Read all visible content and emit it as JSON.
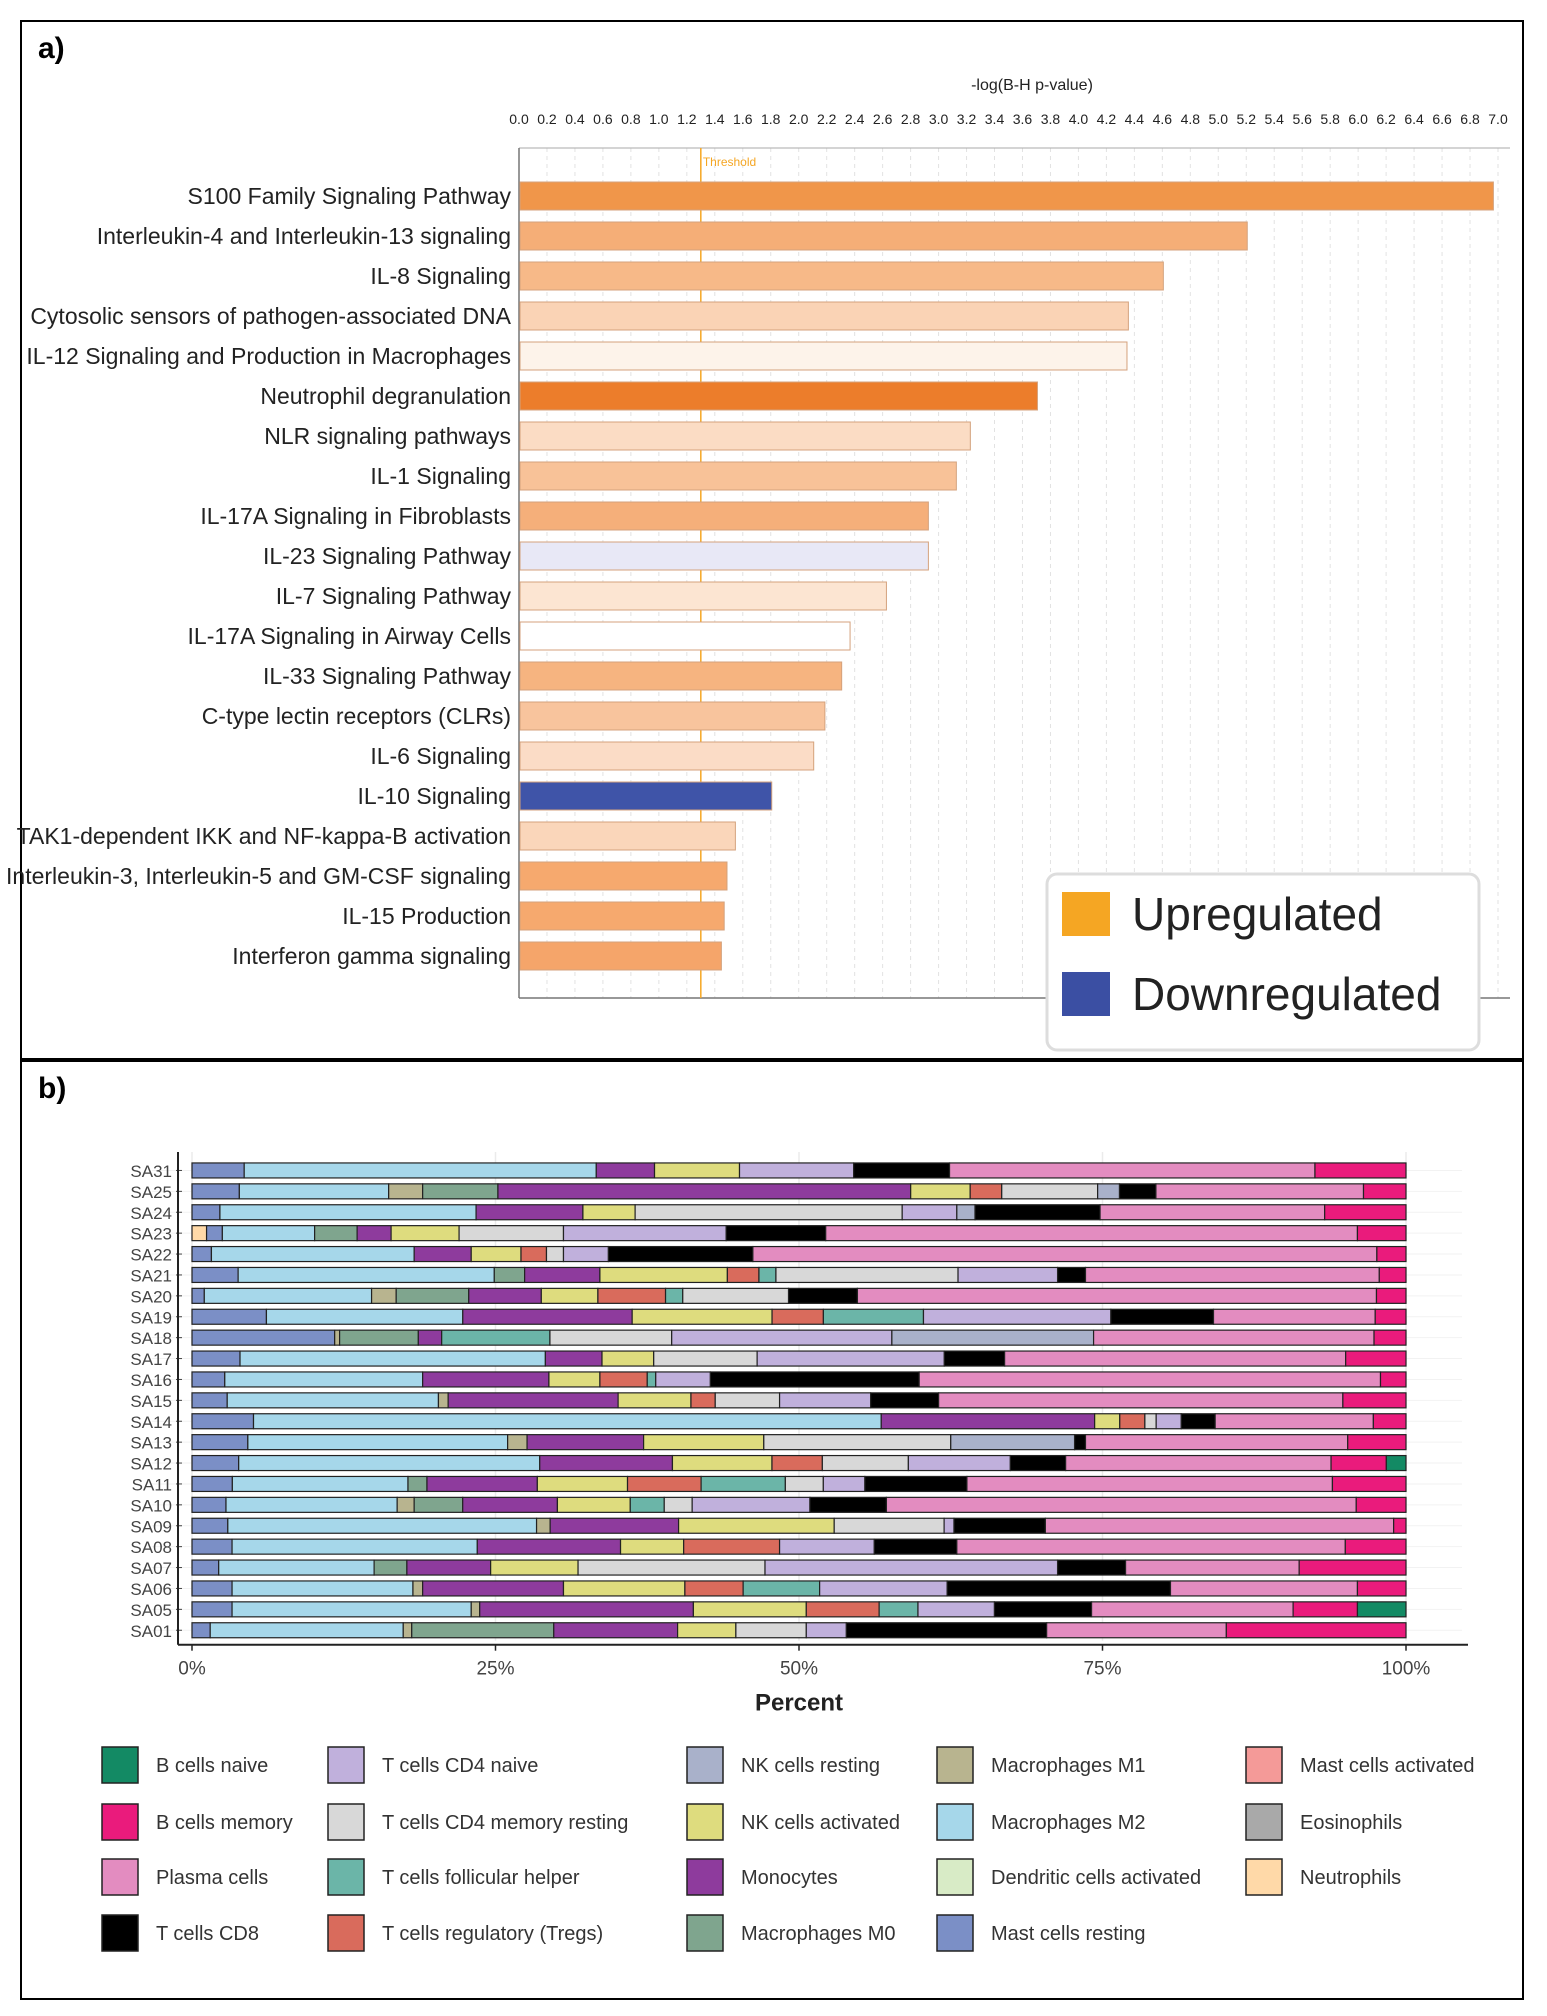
{
  "panel_a": {
    "label": "a)",
    "chart_data": {
      "type": "bar",
      "orientation": "horizontal",
      "xlabel": "-log(B-H p-value)",
      "xlim": [
        0,
        7.0
      ],
      "x_ticks": [
        "0.0",
        "0.2",
        "0.4",
        "0.6",
        "0.8",
        "1.0",
        "1.2",
        "1.4",
        "1.6",
        "1.8",
        "2.0",
        "2.2",
        "2.4",
        "2.6",
        "2.8",
        "3.0",
        "3.2",
        "3.4",
        "3.6",
        "3.8",
        "4.0",
        "4.2",
        "4.4",
        "4.6",
        "4.8",
        "5.0",
        "5.2",
        "5.4",
        "5.6",
        "5.8",
        "6.0",
        "6.2",
        "6.4",
        "6.6",
        "6.8",
        "7.0"
      ],
      "threshold": 1.3,
      "threshold_label": "Threshold",
      "categories": [
        "S100 Family Signaling Pathway",
        "Interleukin-4 and Interleukin-13 signaling",
        "IL-8 Signaling",
        "Cytosolic sensors of pathogen-associated DNA",
        "IL-12 Signaling and Production in Macrophages",
        "Neutrophil degranulation",
        "NLR signaling pathways",
        "IL-1 Signaling",
        "IL-17A Signaling in Fibroblasts",
        "IL-23 Signaling Pathway",
        "IL-7 Signaling Pathway",
        "IL-17A Signaling in Airway Cells",
        "IL-33 Signaling Pathway",
        "C-type lectin receptors (CLRs)",
        "IL-6 Signaling",
        "IL-10 Signaling",
        "TAK1-dependent IKK and NF-kappa-B activation",
        "Interleukin-3, Interleukin-5 and GM-CSF signaling",
        "IL-15 Production",
        "Interferon gamma signaling"
      ],
      "values": [
        6.96,
        5.2,
        4.6,
        4.35,
        4.34,
        3.7,
        3.22,
        3.12,
        2.92,
        2.92,
        2.62,
        2.36,
        2.3,
        2.18,
        2.1,
        1.8,
        1.54,
        1.48,
        1.46,
        1.44
      ],
      "bar_colors": [
        "#f0964a",
        "#f5ae77",
        "#f7b988",
        "#fad3b5",
        "#fdf3ea",
        "#ec7d2b",
        "#fbdcc4",
        "#f8c298",
        "#f5af7a",
        "#e8e8f6",
        "#fce5d2",
        "#ffffff",
        "#f6b480",
        "#f8c49d",
        "#fbdcc6",
        "#3f54a8",
        "#fad6ba",
        "#f6a96e",
        "#f6a96e",
        "#f5a56a"
      ],
      "legend": [
        {
          "label": "Upregulated",
          "color": "#f5a623"
        },
        {
          "label": "Downregulated",
          "color": "#3b4fa3"
        }
      ]
    }
  },
  "panel_b": {
    "label": "b)",
    "chart_data": {
      "type": "bar",
      "stacked": true,
      "orientation": "horizontal",
      "xlabel": "Percent",
      "x_ticks": [
        "0%",
        "25%",
        "50%",
        "75%",
        "100%"
      ],
      "samples": [
        "SA31",
        "SA25",
        "SA24",
        "SA23",
        "SA22",
        "SA21",
        "SA20",
        "SA19",
        "SA18",
        "SA17",
        "SA16",
        "SA15",
        "SA14",
        "SA13",
        "SA12",
        "SA11",
        "SA10",
        "SA09",
        "SA08",
        "SA07",
        "SA06",
        "SA05",
        "SA01"
      ],
      "cell_types": [
        {
          "name": "Neutrophils",
          "color": "#ffd9a8"
        },
        {
          "name": "Mast cells resting",
          "color": "#7b8fc6"
        },
        {
          "name": "Macrophages M2",
          "color": "#a6d7ea"
        },
        {
          "name": "Macrophages M1",
          "color": "#b8b48f"
        },
        {
          "name": "Macrophages M0",
          "color": "#7fa58e"
        },
        {
          "name": "Monocytes",
          "color": "#8e3b9d"
        },
        {
          "name": "NK cells activated",
          "color": "#dedc7e"
        },
        {
          "name": "T cells regulatory (Tregs)",
          "color": "#d96b5c"
        },
        {
          "name": "T cells follicular helper",
          "color": "#6bb5a8"
        },
        {
          "name": "T cells CD4 memory resting",
          "color": "#d8d8d8"
        },
        {
          "name": "T cells CD4 naive",
          "color": "#c0b0dc"
        },
        {
          "name": "NK cells resting",
          "color": "#a9b1ca"
        },
        {
          "name": "T cells CD8",
          "color": "#000000"
        },
        {
          "name": "Plasma cells",
          "color": "#e38cc0"
        },
        {
          "name": "B cells memory",
          "color": "#ea1b7c"
        },
        {
          "name": "Mast cells activated",
          "color": "#f49a98"
        },
        {
          "name": "Eosinophils",
          "color": "#a9a9a9"
        },
        {
          "name": "Dendritic cells activated",
          "color": "#d8ebc6"
        },
        {
          "name": "B cells naive",
          "color": "#138a64"
        }
      ],
      "values_percent": {
        "SA31": {
          "Mast cells resting": 4.3,
          "Macrophages M2": 29,
          "Monocytes": 4.8,
          "NK cells activated": 7,
          "T cells CD4 naive": 9.4,
          "T cells CD8": 7.9,
          "Plasma cells": 30.1,
          "B cells memory": 7.5
        },
        "SA25": {
          "Mast cells resting": 3.9,
          "Macrophages M2": 12.3,
          "Macrophages M1": 2.8,
          "Macrophages M0": 6.2,
          "Monocytes": 34,
          "NK cells activated": 4.9,
          "T cells regulatory (Tregs)": 2.6,
          "T cells CD4 memory resting": 7.9,
          "NK cells resting": 1.8,
          "T cells CD8": 3,
          "Plasma cells": 17.1,
          "B cells memory": 3.5
        },
        "SA24": {
          "Mast cells resting": 2.3,
          "Macrophages M2": 21.1,
          "Monocytes": 8.8,
          "NK cells activated": 4.3,
          "NK cells resting": 1.5,
          "T cells CD4 memory resting": 22,
          "T cells CD4 naive": 4.5,
          "T cells CD8": 10.3,
          "Plasma cells": 18.5,
          "B cells memory": 6.7
        },
        "SA23": {
          "Neutrophils": 1.2,
          "Mast cells resting": 1.3,
          "Macrophages M2": 7.6,
          "Macrophages M0": 3.5,
          "Monocytes": 2.8,
          "NK cells activated": 5.6,
          "T cells CD4 memory resting": 8.6,
          "T cells CD4 naive": 13.4,
          "T cells CD8": 8.2,
          "Plasma cells": 43.8,
          "B cells memory": 4
        },
        "SA22": {
          "Mast cells resting": 1.6,
          "Macrophages M2": 16.7,
          "Monocytes": 4.7,
          "NK cells activated": 4.1,
          "T cells regulatory (Tregs)": 2.1,
          "T cells CD4 memory resting": 1.4,
          "T cells CD4 naive": 3.7,
          "T cells CD8": 11.9,
          "Plasma cells": 51.4,
          "B cells memory": 2.4
        },
        "SA21": {
          "Mast cells resting": 3.8,
          "Macrophages M2": 21.1,
          "Macrophages M0": 2.5,
          "Monocytes": 6.2,
          "NK cells activated": 10.5,
          "T cells regulatory (Tregs)": 2.6,
          "T cells follicular helper": 1.4,
          "T cells CD4 memory resting": 15,
          "T cells CD4 naive": 8.2,
          "T cells CD8": 2.3,
          "Plasma cells": 24.2,
          "B cells memory": 2.2
        },
        "SA20": {
          "Mast cells resting": 1,
          "Macrophages M2": 13.6,
          "Macrophages M1": 2,
          "Macrophages M0": 5.9,
          "Monocytes": 5.9,
          "NK cells activated": 4.6,
          "T cells regulatory (Tregs)": 5.5,
          "T cells follicular helper": 1.4,
          "T cells CD4 memory resting": 8.6,
          "T cells CD8": 5.6,
          "Plasma cells": 42.2,
          "B cells memory": 2.4
        },
        "SA19": {
          "Mast cells resting": 5.8,
          "Macrophages M2": 15.3,
          "Monocytes": 13.2,
          "NK cells activated": 10.9,
          "T cells regulatory (Tregs)": 4,
          "T cells follicular helper": 7.8,
          "T cells CD4 naive": 14.6,
          "T cells CD8": 8,
          "Plasma cells": 12.6,
          "B cells memory": 2.4
        },
        "SA18": {
          "Macrophages M1": 0.4,
          "Mast cells resting": 11.6,
          "Macrophages M0": 6.4,
          "Monocytes": 1.9,
          "T cells CD4 memory resting": 9.9,
          "T cells follicular helper": 8.8,
          "T cells CD4 naive": 17.9,
          "NK cells resting": 16.4,
          "Plasma cells": 22.8,
          "B cells memory": 2.6
        },
        "SA17": {
          "Mast cells resting": 3.9,
          "Macrophages M2": 24.8,
          "Monocytes": 4.6,
          "NK cells activated": 4.2,
          "T cells CD4 memory resting": 8.4,
          "T cells CD4 naive": 15.2,
          "T cells CD8": 4.9,
          "Plasma cells": 27.7,
          "B cells memory": 4.9
        },
        "SA16": {
          "Mast cells resting": 2.7,
          "Macrophages M2": 16.3,
          "Monocytes": 10.4,
          "NK cells activated": 4.2,
          "T cells regulatory (Tregs)": 3.9,
          "T cells follicular helper": 0.7,
          "T cells CD4 naive": 4.5,
          "T cells CD8": 17.2,
          "Plasma cells": 38,
          "B cells memory": 2.1
        },
        "SA15": {
          "Mast cells resting": 2.9,
          "Macrophages M2": 17.4,
          "Macrophages M1": 0.8,
          "Monocytes": 14,
          "NK cells activated": 6,
          "T cells regulatory (Tregs)": 2,
          "T cells CD4 memory resting": 5.3,
          "T cells CD4 naive": 7.5,
          "T cells CD8": 5.6,
          "Plasma cells": 33.3,
          "B cells memory": 5.2
        },
        "SA14": {
          "Mast cells resting": 4.9,
          "Macrophages M2": 50,
          "Monocytes": 17,
          "NK cells activated": 2,
          "T cells regulatory (Tregs)": 2,
          "T cells CD4 memory resting": 0.9,
          "T cells CD4 naive": 2,
          "T cells CD8": 2.7,
          "Plasma cells": 12.6,
          "B cells memory": 2.6
        },
        "SA13": {
          "Mast cells resting": 4.6,
          "Macrophages M2": 21.4,
          "Macrophages M1": 1.6,
          "Monocytes": 9.6,
          "NK cells activated": 9.9,
          "T cells CD4 memory resting": 15.4,
          "NK cells resting": 10.2,
          "T cells CD8": 0.9,
          "Plasma cells": 21.6,
          "B cells memory": 4.8
        },
        "SA12": {
          "Mast cells resting": 3.8,
          "Macrophages M2": 24.5,
          "Monocytes": 10.8,
          "NK cells activated": 8.1,
          "T cells regulatory (Tregs)": 4.1,
          "T cells CD4 memory resting": 7,
          "T cells CD4 naive": 8.3,
          "T cells CD8": 4.5,
          "Plasma cells": 21.6,
          "B cells memory": 4.5,
          "B cells naive": 1.6
        },
        "SA11": {
          "Mast cells resting": 3.4,
          "Macrophages M2": 14.8,
          "Macrophages M0": 1.6,
          "Monocytes": 9.3,
          "NK cells activated": 7.6,
          "T cells regulatory (Tregs)": 6.2,
          "T cells follicular helper": 7.1,
          "T cells CD4 memory resting": 3.2,
          "T cells CD4 naive": 3.5,
          "T cells CD8": 8.6,
          "Plasma cells": 30.8,
          "B cells memory": 6.2
        },
        "SA10": {
          "Mast cells resting": 2.8,
          "Macrophages M2": 14.1,
          "Macrophages M1": 1.4,
          "Macrophages M0": 4,
          "Monocytes": 7.8,
          "NK cells activated": 6,
          "T cells follicular helper": 2.8,
          "T cells CD4 memory resting": 2.3,
          "T cells CD4 naive": 9.7,
          "T cells CD8": 6.3,
          "Plasma cells": 38.7,
          "B cells memory": 4.1
        },
        "SA09": {
          "Mast cells resting": 2.9,
          "Macrophages M2": 25,
          "Macrophages M1": 1.1,
          "Monocytes": 10.4,
          "NK cells activated": 12.6,
          "T cells CD4 memory resting": 8.9,
          "T cells CD4 naive": 0.8,
          "T cells CD8": 7.4,
          "Plasma cells": 28.2,
          "B cells memory": 1
        },
        "SA08": {
          "Mast cells resting": 3.3,
          "Macrophages M2": 20.2,
          "Monocytes": 11.8,
          "NK cells activated": 5.2,
          "T cells regulatory (Tregs)": 7.9,
          "T cells CD4 naive": 7.8,
          "T cells CD8": 6.8,
          "Plasma cells": 32,
          "B cells memory": 5
        },
        "SA07": {
          "Mast cells resting": 2.2,
          "Macrophages M2": 12.8,
          "Macrophages M0": 2.7,
          "Monocytes": 6.9,
          "NK cells activated": 7.2,
          "T cells CD4 memory resting": 15.4,
          "T cells CD4 naive": 24.1,
          "T cells CD8": 5.6,
          "Plasma cells": 14.3,
          "B cells memory": 8.8
        },
        "SA06": {
          "Mast cells resting": 3.3,
          "Macrophages M2": 14.9,
          "Macrophages M1": 0.8,
          "Monocytes": 11.6,
          "NK cells activated": 10,
          "T cells regulatory (Tregs)": 4.8,
          "T cells follicular helper": 6.3,
          "T cells CD4 naive": 10.5,
          "T cells CD8": 18.4,
          "Plasma cells": 15.4,
          "B cells memory": 4
        },
        "SA05": {
          "Mast cells resting": 3.3,
          "Macrophages M2": 19.7,
          "Macrophages M1": 0.7,
          "Monocytes": 17.6,
          "NK cells activated": 9.3,
          "T cells regulatory (Tregs)": 6,
          "T cells follicular helper": 3.2,
          "T cells CD4 naive": 6.3,
          "T cells CD8": 8,
          "Plasma cells": 16.6,
          "B cells memory": 5.3,
          "B cells naive": 4
        },
        "SA01": {
          "Mast cells resting": 1.5,
          "Macrophages M2": 15.9,
          "Macrophages M1": 0.7,
          "Macrophages M0": 11.7,
          "Monocytes": 10.2,
          "NK cells activated": 4.8,
          "T cells CD4 memory resting": 5.8,
          "T cells CD4 naive": 3.3,
          "T cells CD8": 16.5,
          "Plasma cells": 14.8,
          "B cells memory": 14.8
        }
      },
      "legend": [
        [
          "B cells naive",
          "T cells CD4 naive",
          "NK cells resting",
          "Macrophages M1",
          "Mast cells activated"
        ],
        [
          "B cells memory",
          "T cells CD4 memory resting",
          "NK cells activated",
          "Macrophages M2",
          "Eosinophils"
        ],
        [
          "Plasma cells",
          "T cells follicular helper",
          "Monocytes",
          "Dendritic cells activated",
          "Neutrophils"
        ],
        [
          "T cells CD8",
          "T cells regulatory (Tregs)",
          "Macrophages M0",
          "Mast cells resting"
        ]
      ]
    }
  }
}
